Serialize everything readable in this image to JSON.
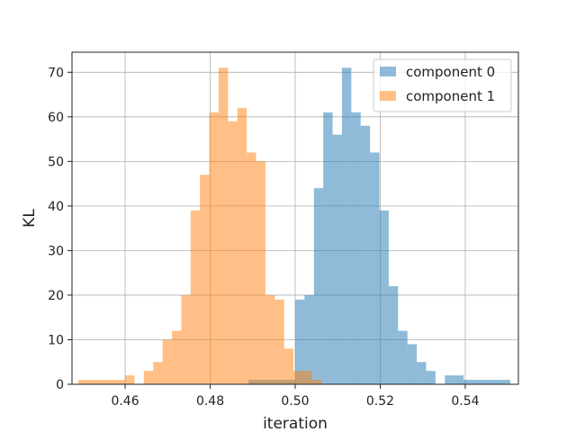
{
  "chart_data": {
    "type": "bar",
    "subtype": "histogram",
    "title": "",
    "xlabel": "iteration",
    "ylabel": "KL",
    "xlim": [
      0.4475,
      0.5525
    ],
    "ylim": [
      0,
      74.5
    ],
    "xticks": [
      0.46,
      0.48,
      0.5,
      0.52,
      0.54
    ],
    "yticks": [
      0,
      10,
      20,
      30,
      40,
      50,
      60,
      70
    ],
    "grid": true,
    "legend_position": "top-right",
    "series": [
      {
        "name": "component 0",
        "color": "#1f77b4",
        "opacity": 0.5,
        "bin_width": 0.0022,
        "bins_left": [
          0.489,
          0.4912,
          0.4934,
          0.4956,
          0.4978,
          0.5,
          0.5022,
          0.5044,
          0.5066,
          0.5088,
          0.511,
          0.5132,
          0.5154,
          0.5176,
          0.5198,
          0.522,
          0.5242,
          0.5264,
          0.5286,
          0.5308,
          0.533,
          0.5352,
          0.5374,
          0.5396,
          0.5418,
          0.544,
          0.5462,
          0.5484
        ],
        "counts": [
          1,
          1,
          1,
          1,
          1,
          19,
          20,
          44,
          61,
          56,
          71,
          61,
          58,
          52,
          39,
          22,
          12,
          9,
          5,
          3,
          0,
          2,
          2,
          1,
          1,
          1,
          1,
          1
        ]
      },
      {
        "name": "component 1",
        "color": "#ff7f0e",
        "opacity": 0.5,
        "bin_width": 0.0022,
        "bins_left": [
          0.449,
          0.4512,
          0.4534,
          0.4556,
          0.4578,
          0.46,
          0.4622,
          0.4644,
          0.4666,
          0.4688,
          0.471,
          0.4732,
          0.4754,
          0.4776,
          0.4798,
          0.482,
          0.4842,
          0.4864,
          0.4886,
          0.4908,
          0.493,
          0.4952,
          0.4974,
          0.4996,
          0.5018,
          0.504
        ],
        "counts": [
          1,
          1,
          1,
          1,
          1,
          2,
          0,
          3,
          5,
          10,
          12,
          20,
          39,
          47,
          61,
          71,
          59,
          62,
          52,
          50,
          20,
          19,
          8,
          3,
          3,
          1
        ]
      }
    ]
  }
}
